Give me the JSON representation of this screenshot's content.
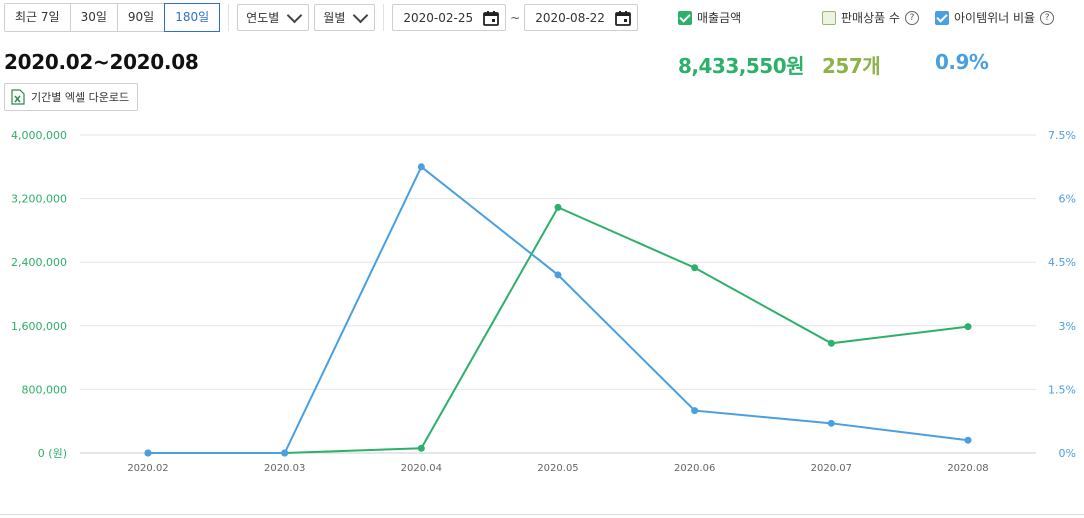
{
  "filters": {
    "periods": [
      "최근 7일",
      "30일",
      "90일",
      "180일"
    ],
    "active_period": "180일",
    "unit_year": "연도별",
    "unit_month": "월별",
    "date_from": "2020-02-25",
    "date_sep": "~",
    "date_to": "2020-08-22"
  },
  "toggles": {
    "sales": {
      "label": "매출금액",
      "checked": true
    },
    "items": {
      "label": "판매상품 수",
      "checked": false
    },
    "winner": {
      "label": "아이템위너 비율",
      "checked": true
    },
    "help_glyph": "?"
  },
  "summary": {
    "period": "2020.02~2020.08",
    "sales_total": "8,433,550원",
    "items_total": "257개",
    "winner_ratio": "0.9%",
    "excel_label": "기간별 엑셀 다운로드"
  },
  "colors": {
    "sales": "#2db06a",
    "items": "#8cb34a",
    "winner": "#4a9fe0",
    "grid": "#e6e6e6",
    "axis_text": "#666666"
  },
  "chart_data": {
    "type": "line",
    "categories": [
      "2020.02",
      "2020.03",
      "2020.04",
      "2020.05",
      "2020.06",
      "2020.07",
      "2020.08"
    ],
    "series": [
      {
        "name": "매출금액",
        "axis": "left",
        "values": [
          0,
          0,
          60000,
          3090000,
          2330000,
          1380000,
          1590000
        ]
      },
      {
        "name": "아이템위너 비율",
        "axis": "right",
        "values": [
          0,
          0,
          6.75,
          4.2,
          1.0,
          0.7,
          0.3
        ]
      }
    ],
    "y_left": {
      "ticks": [
        "4,000,000",
        "3,200,000",
        "2,400,000",
        "1,600,000",
        "800,000",
        "0 (원)"
      ],
      "range": [
        0,
        4000000
      ]
    },
    "y_right": {
      "ticks": [
        "7.5%",
        "6%",
        "4.5%",
        "3%",
        "1.5%",
        "0%"
      ],
      "range": [
        0,
        7.5
      ]
    },
    "grid": true
  }
}
